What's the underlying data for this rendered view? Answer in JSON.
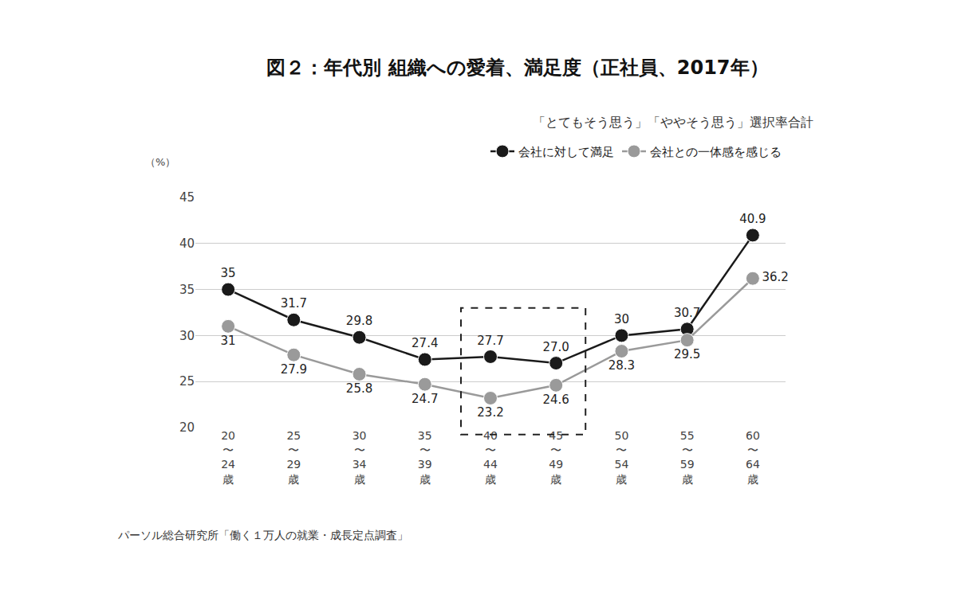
{
  "chart_data": {
    "type": "line",
    "title": "図２：年代別 組織への愛着、満足度（正社員、2017年）",
    "subtitle": "「とてもそう思う」「ややそう思う」選択率合計",
    "ylabel": "（%）",
    "source": "パーソル総合研究所「働く１万人の就業・成長定点調査」",
    "categories": [
      "20〜24歳",
      "25〜29歳",
      "30〜34歳",
      "35〜39歳",
      "40〜44歳",
      "45〜49歳",
      "50〜54歳",
      "55〜59歳",
      "60〜64歳"
    ],
    "series": [
      {
        "name": "会社に対して満足",
        "color": "#1a1a1a",
        "values": [
          35,
          31.7,
          29.8,
          27.4,
          27.7,
          27.0,
          30,
          30.7,
          40.9
        ],
        "value_labels": [
          "35",
          "31.7",
          "29.8",
          "27.4",
          "27.7",
          "27.0",
          "30",
          "30.7",
          "40.9"
        ]
      },
      {
        "name": "会社との一体感を感じる",
        "color": "#9a9a9a",
        "values": [
          31,
          27.9,
          25.8,
          24.7,
          23.2,
          24.6,
          28.3,
          29.5,
          36.2
        ]
      }
    ],
    "ylim": [
      20,
      45
    ],
    "yticks": [
      20,
      25,
      30,
      35,
      40,
      45
    ],
    "grid": true,
    "data_labels": true,
    "legend": "top-right",
    "marker": "circle"
  }
}
